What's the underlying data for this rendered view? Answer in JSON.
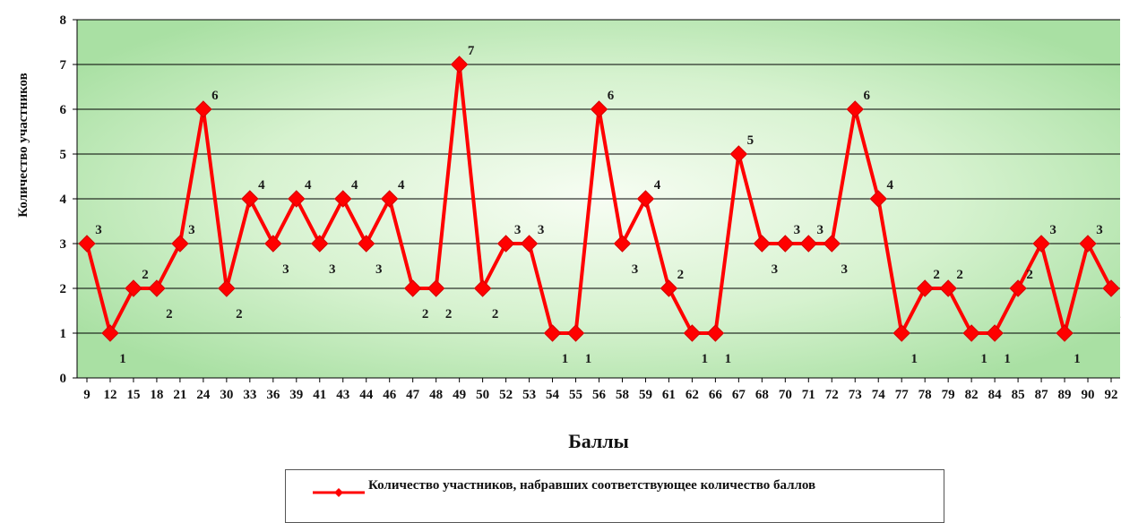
{
  "chart_data": {
    "type": "line",
    "title": "",
    "xlabel": "Баллы",
    "ylabel": "Количество участников",
    "ylim": [
      0,
      8
    ],
    "yticks": [
      "0",
      "1",
      "2",
      "3",
      "4",
      "5",
      "6",
      "7",
      "8"
    ],
    "grid": "horizontal",
    "legend_position": "bottom",
    "categories": [
      "9",
      "12",
      "15",
      "18",
      "21",
      "24",
      "30",
      "33",
      "36",
      "39",
      "41",
      "43",
      "44",
      "46",
      "47",
      "48",
      "49",
      "50",
      "52",
      "53",
      "54",
      "55",
      "56",
      "58",
      "59",
      "61",
      "62",
      "66",
      "67",
      "68",
      "70",
      "71",
      "72",
      "73",
      "74",
      "77",
      "78",
      "79",
      "82",
      "84",
      "85",
      "87",
      "89",
      "90",
      "92"
    ],
    "series": [
      {
        "name": "Количество участников, набравших соответствующее количество баллов",
        "color": "#ff0000",
        "marker": "diamond",
        "values": [
          3,
          1,
          2,
          2,
          3,
          6,
          2,
          4,
          3,
          4,
          3,
          4,
          3,
          4,
          2,
          2,
          7,
          2,
          3,
          3,
          1,
          1,
          6,
          3,
          4,
          2,
          1,
          1,
          5,
          3,
          3,
          3,
          3,
          6,
          4,
          1,
          2,
          2,
          1,
          1,
          2,
          3,
          1,
          3,
          2
        ]
      }
    ],
    "colors": {
      "plot_bg_light": "#f7fdf3",
      "plot_bg_dark": "#a9e0a3",
      "gridline": "#000000"
    }
  }
}
